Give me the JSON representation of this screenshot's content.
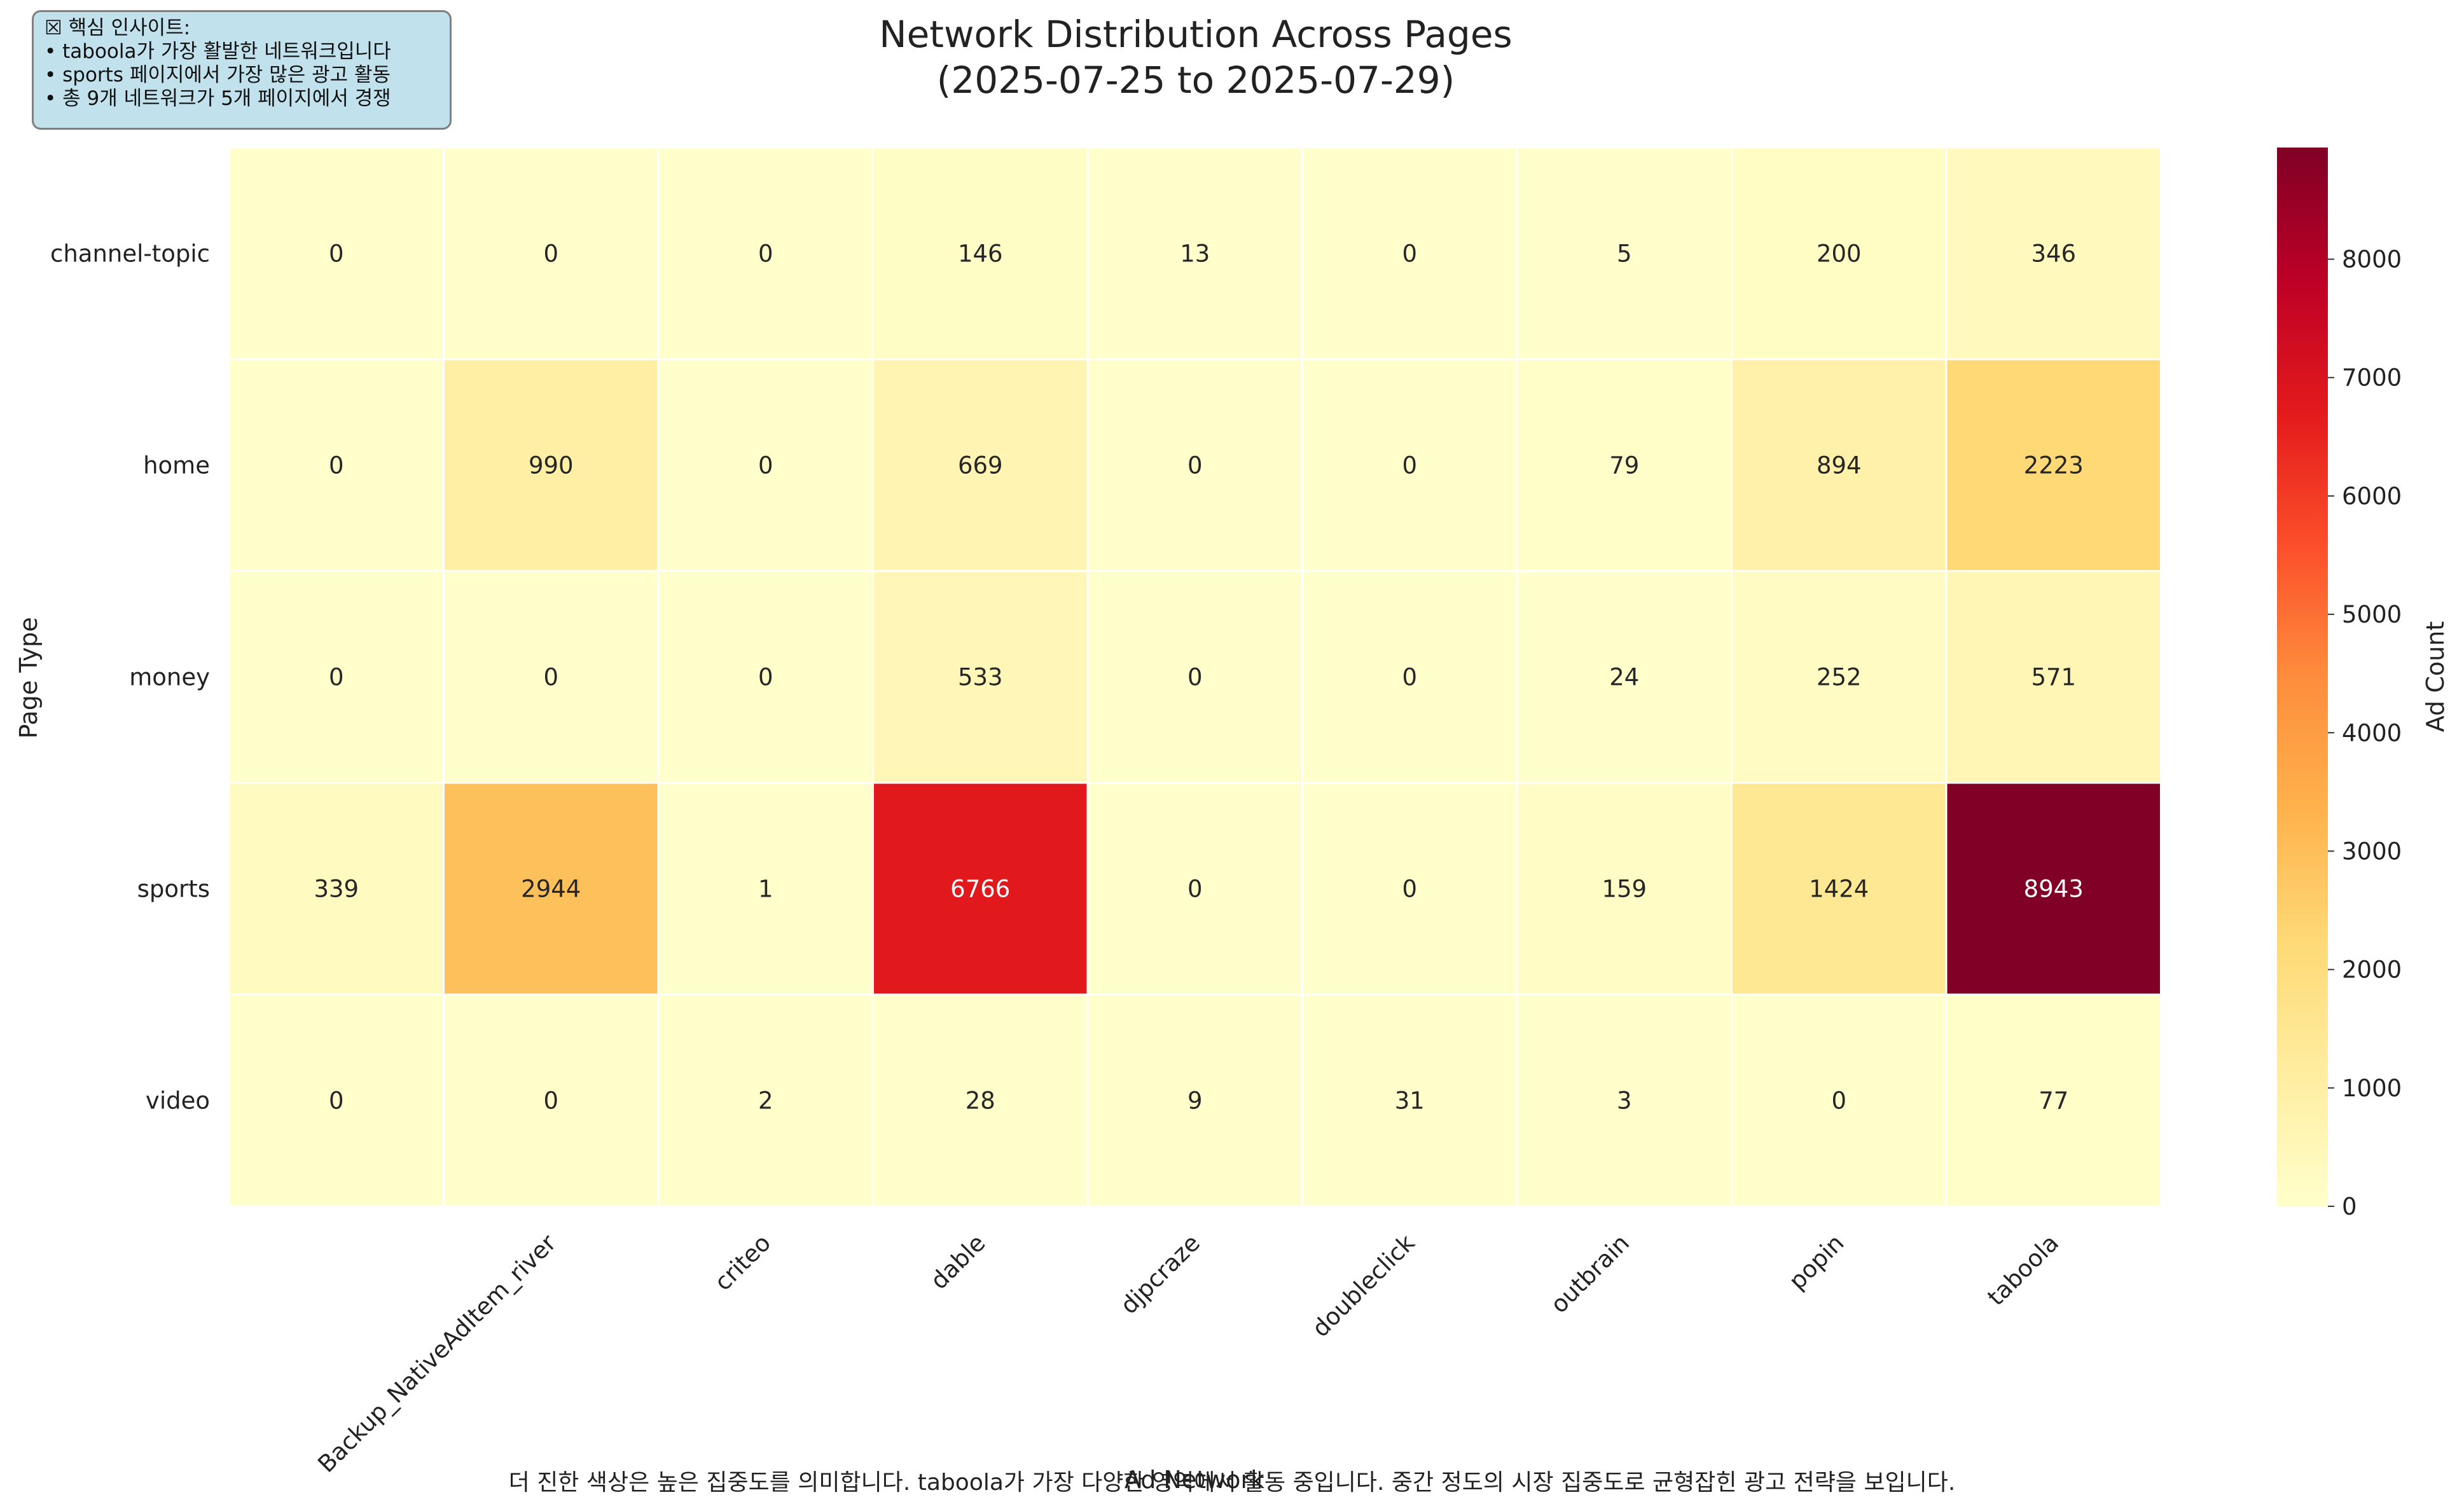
{
  "insight": {
    "title": "☒ 핵심 인사이트:",
    "bullets": [
      "• taboola가 가장 활발한 네트워크입니다",
      "• sports 페이지에서 가장 많은 광고 활동",
      "• 총 9개 네트워크가 5개 페이지에서 경쟁"
    ]
  },
  "title_line1": "Network Distribution Across Pages",
  "title_line2": "(2025-07-25 to 2025-07-29)",
  "footer": "더 진한 색상은 높은 집중도를 의미합니다. taboola가 가장 다양한 영역에서 활동 중입니다. 중간 정도의 시장 집중도로 균형잡힌 광고 전략을 보입니다.",
  "colors": {
    "cmap": [
      "#ffffcc",
      "#ffeda0",
      "#fed976",
      "#feb24c",
      "#fd8d3c",
      "#fc4e2a",
      "#e31a1c",
      "#bd0026",
      "#800026"
    ],
    "dark_text": "#262626",
    "light_text": "#ffffff"
  },
  "chart_data": {
    "type": "heatmap",
    "title": "Network Distribution Across Pages\n(2025-07-25 to 2025-07-29)",
    "xlabel": "Ad Network",
    "ylabel": "Page Type",
    "x_categories": [
      "",
      "Backup_NativeAdItem_river",
      "criteo",
      "dable",
      "djpcraze",
      "doubleclick",
      "outbrain",
      "popin",
      "taboola"
    ],
    "y_categories": [
      "channel-topic",
      "home",
      "money",
      "sports",
      "video"
    ],
    "values": [
      [
        0,
        0,
        0,
        146,
        13,
        0,
        5,
        200,
        346
      ],
      [
        0,
        990,
        0,
        669,
        0,
        0,
        79,
        894,
        2223
      ],
      [
        0,
        0,
        0,
        533,
        0,
        0,
        24,
        252,
        571
      ],
      [
        339,
        2944,
        1,
        6766,
        0,
        0,
        159,
        1424,
        8943
      ],
      [
        0,
        0,
        2,
        28,
        9,
        31,
        3,
        0,
        77
      ]
    ],
    "colorbar": {
      "label": "Ad Count",
      "range": [
        0,
        8943
      ],
      "ticks": [
        0,
        1000,
        2000,
        3000,
        4000,
        5000,
        6000,
        7000,
        8000
      ]
    },
    "colormap": "YlOrRd",
    "grid": false
  }
}
